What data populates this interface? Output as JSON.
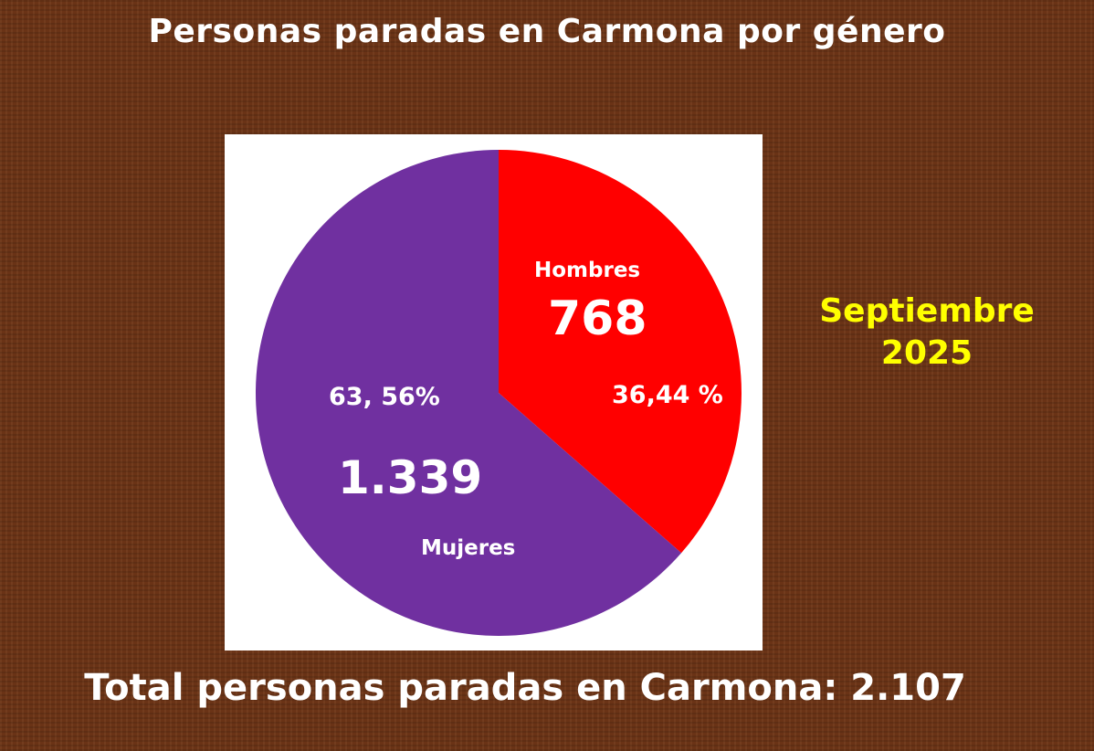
{
  "title": "Personas paradas en Carmona por género",
  "date": {
    "month": "Septiembre",
    "year": "2025"
  },
  "total_text": "Total personas paradas en Carmona: 2.107",
  "colors": {
    "background": "#6a3316",
    "hombres": "#ff0000",
    "mujeres": "#7030a0",
    "date_text": "#ffff00"
  },
  "chart_data": {
    "type": "pie",
    "title": "Personas paradas en Carmona por género",
    "slices": [
      {
        "label": "Hombres",
        "value": 768,
        "value_label": "768",
        "percent": 36.44,
        "percent_label": "36,44 %",
        "color": "#ff0000"
      },
      {
        "label": "Mujeres",
        "value": 1339,
        "value_label": "1.339",
        "percent": 63.56,
        "percent_label": "63, 56%",
        "color": "#7030a0"
      }
    ],
    "total": 2107
  }
}
